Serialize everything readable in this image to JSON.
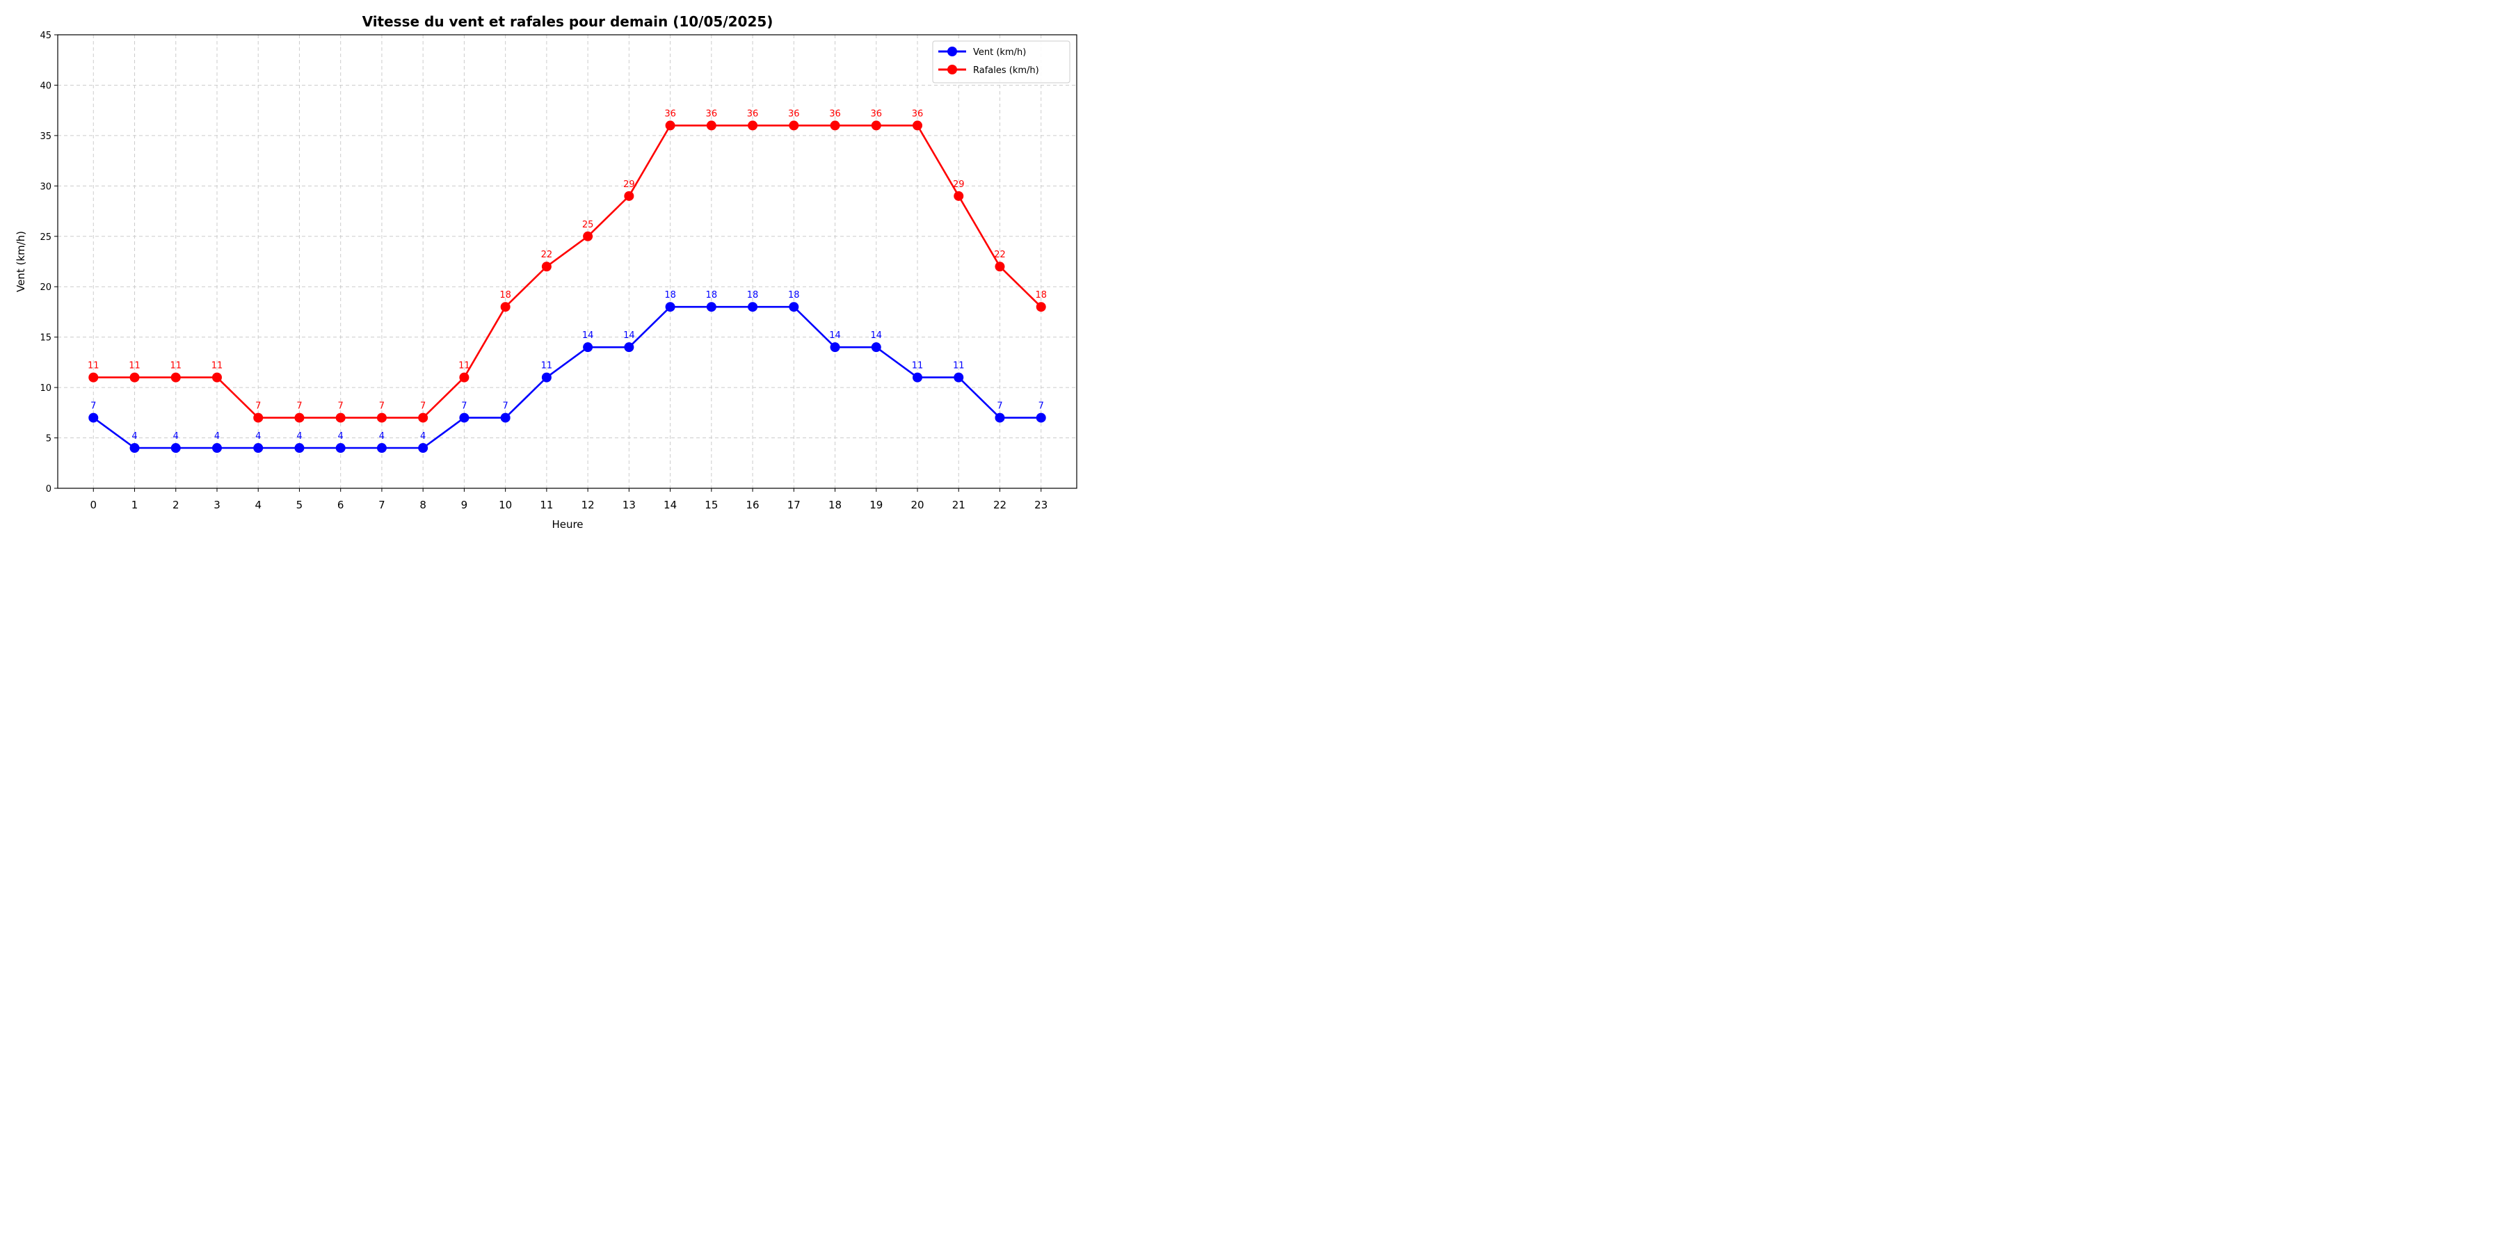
{
  "chart_data": {
    "type": "line",
    "title": "Vitesse du vent et rafales pour demain (10/05/2025)",
    "xlabel": "Heure",
    "ylabel": "Vent (km/h)",
    "x": [
      0,
      1,
      2,
      3,
      4,
      5,
      6,
      7,
      8,
      9,
      10,
      11,
      12,
      13,
      14,
      15,
      16,
      17,
      18,
      19,
      20,
      21,
      22,
      23
    ],
    "ylim": [
      0,
      45
    ],
    "yticks": [
      0,
      5,
      10,
      15,
      20,
      25,
      30,
      35,
      40,
      45
    ],
    "grid": true,
    "legend_position": "top-right",
    "series": [
      {
        "name": "Vent (km/h)",
        "color": "#0000ff",
        "marker": "circle",
        "values": [
          7,
          4,
          4,
          4,
          4,
          4,
          4,
          4,
          4,
          7,
          7,
          11,
          14,
          14,
          18,
          18,
          18,
          18,
          14,
          14,
          11,
          11,
          7,
          7
        ]
      },
      {
        "name": "Rafales (km/h)",
        "color": "#ff0000",
        "marker": "circle",
        "values": [
          11,
          11,
          11,
          11,
          7,
          7,
          7,
          7,
          7,
          11,
          18,
          22,
          25,
          29,
          36,
          36,
          36,
          36,
          36,
          36,
          36,
          29,
          22,
          18
        ]
      }
    ]
  }
}
